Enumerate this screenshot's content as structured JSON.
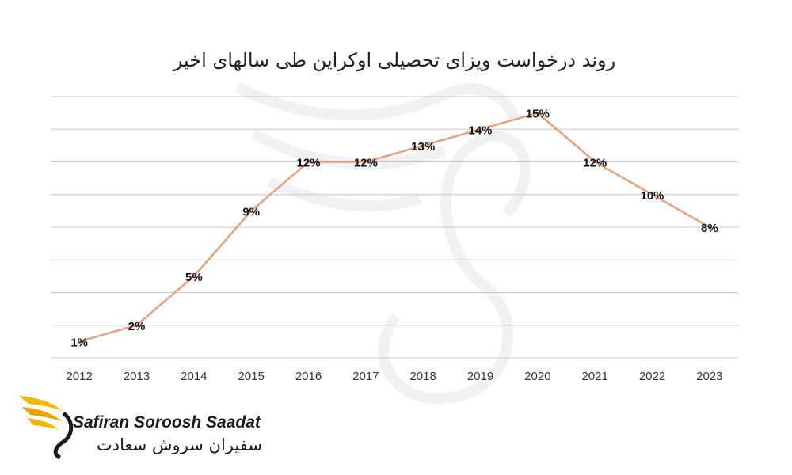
{
  "chart_data": {
    "type": "line",
    "title": "روند درخواست ویزای تحصیلی اوکراین طی سالهای اخیر",
    "categories": [
      "2012",
      "2013",
      "2014",
      "2015",
      "2016",
      "2017",
      "2018",
      "2019",
      "2020",
      "2021",
      "2022",
      "2023"
    ],
    "values": [
      1,
      2,
      5,
      9,
      12,
      12,
      13,
      14,
      15,
      12,
      10,
      8
    ],
    "data_labels": [
      "1%",
      "2%",
      "5%",
      "9%",
      "12%",
      "12%",
      "13%",
      "14%",
      "15%",
      "12%",
      "10%",
      "8%"
    ],
    "ylim": [
      0,
      16
    ],
    "grid": true,
    "line_color": "#e8a080",
    "gridline_color": "#c8c8c8"
  },
  "logo": {
    "english": "Safiran Soroosh Saadat",
    "persian": "سفیران سروش سعادت",
    "accent_color": "#f2b705"
  }
}
